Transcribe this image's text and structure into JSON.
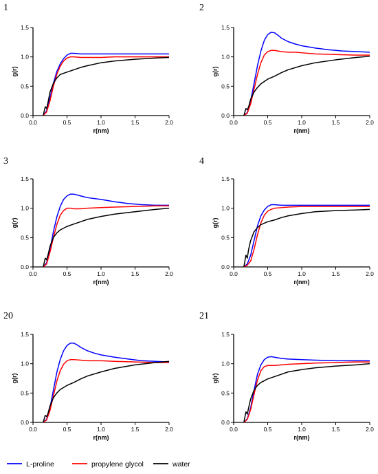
{
  "chart_data": {
    "type": "line",
    "xlabel": "r(nm)",
    "ylabel": "g(r)",
    "xlim": [
      0.0,
      2.0
    ],
    "ylim": [
      0.0,
      1.5
    ],
    "xticks": [
      "0.0",
      "0.5",
      "1.0",
      "1.5",
      "2.0"
    ],
    "yticks": [
      "0.0",
      "0.5",
      "1.0",
      "1.5"
    ],
    "legend": {
      "position": "bottom",
      "entries": [
        {
          "name": "L-proline",
          "color": "#0000ff"
        },
        {
          "name": "propylene glycol",
          "color": "#ff0000"
        },
        {
          "name": "water",
          "color": "#000000"
        }
      ]
    },
    "panels": [
      {
        "label": "1",
        "series": [
          {
            "name": "L-proline",
            "color": "#0000ff",
            "x": [
              0.15,
              0.2,
              0.25,
              0.3,
              0.35,
              0.4,
              0.45,
              0.5,
              0.55,
              0.6,
              0.7,
              0.8,
              1.0,
              1.2,
              1.5,
              1.8,
              2.0
            ],
            "y": [
              0.0,
              0.08,
              0.3,
              0.55,
              0.75,
              0.88,
              0.97,
              1.03,
              1.06,
              1.06,
              1.05,
              1.05,
              1.05,
              1.05,
              1.05,
              1.05,
              1.05
            ]
          },
          {
            "name": "propylene glycol",
            "color": "#ff0000",
            "x": [
              0.15,
              0.2,
              0.25,
              0.3,
              0.35,
              0.4,
              0.45,
              0.5,
              0.55,
              0.6,
              0.7,
              0.8,
              1.0,
              1.2,
              1.5,
              1.8,
              2.0
            ],
            "y": [
              0.0,
              0.06,
              0.25,
              0.5,
              0.7,
              0.84,
              0.93,
              0.98,
              1.0,
              1.0,
              0.99,
              0.99,
              0.99,
              1.0,
              1.0,
              1.0,
              1.0
            ]
          },
          {
            "name": "water",
            "color": "#000000",
            "x": [
              0.15,
              0.18,
              0.2,
              0.22,
              0.25,
              0.3,
              0.35,
              0.4,
              0.5,
              0.6,
              0.7,
              0.8,
              1.0,
              1.2,
              1.5,
              1.8,
              2.0
            ],
            "y": [
              0.0,
              0.15,
              0.12,
              0.22,
              0.4,
              0.55,
              0.64,
              0.7,
              0.74,
              0.78,
              0.82,
              0.85,
              0.9,
              0.93,
              0.96,
              0.98,
              0.99
            ]
          }
        ]
      },
      {
        "label": "2",
        "series": [
          {
            "name": "L-proline",
            "color": "#0000ff",
            "x": [
              0.15,
              0.2,
              0.25,
              0.3,
              0.35,
              0.4,
              0.45,
              0.5,
              0.55,
              0.6,
              0.65,
              0.7,
              0.8,
              0.9,
              1.0,
              1.2,
              1.4,
              1.6,
              1.8,
              2.0
            ],
            "y": [
              0.0,
              0.05,
              0.25,
              0.55,
              0.85,
              1.1,
              1.28,
              1.38,
              1.42,
              1.41,
              1.37,
              1.32,
              1.26,
              1.22,
              1.19,
              1.15,
              1.12,
              1.1,
              1.09,
              1.08
            ]
          },
          {
            "name": "propylene glycol",
            "color": "#ff0000",
            "x": [
              0.15,
              0.2,
              0.25,
              0.3,
              0.35,
              0.4,
              0.45,
              0.5,
              0.55,
              0.6,
              0.7,
              0.8,
              0.9,
              1.0,
              1.2,
              1.5,
              1.8,
              2.0
            ],
            "y": [
              0.0,
              0.04,
              0.2,
              0.45,
              0.7,
              0.9,
              1.03,
              1.09,
              1.11,
              1.11,
              1.09,
              1.08,
              1.08,
              1.07,
              1.05,
              1.04,
              1.03,
              1.03
            ]
          },
          {
            "name": "water",
            "color": "#000000",
            "x": [
              0.15,
              0.18,
              0.2,
              0.22,
              0.25,
              0.3,
              0.35,
              0.4,
              0.5,
              0.6,
              0.7,
              0.8,
              1.0,
              1.2,
              1.5,
              1.8,
              2.0
            ],
            "y": [
              0.0,
              0.12,
              0.1,
              0.15,
              0.28,
              0.4,
              0.48,
              0.54,
              0.62,
              0.67,
              0.73,
              0.78,
              0.85,
              0.9,
              0.95,
              0.99,
              1.01
            ]
          }
        ]
      },
      {
        "label": "3",
        "series": [
          {
            "name": "L-proline",
            "color": "#0000ff",
            "x": [
              0.15,
              0.2,
              0.25,
              0.3,
              0.35,
              0.4,
              0.45,
              0.5,
              0.55,
              0.6,
              0.7,
              0.8,
              1.0,
              1.2,
              1.4,
              1.6,
              1.8,
              2.0
            ],
            "y": [
              0.0,
              0.07,
              0.3,
              0.6,
              0.85,
              1.03,
              1.15,
              1.21,
              1.24,
              1.24,
              1.21,
              1.18,
              1.15,
              1.11,
              1.08,
              1.06,
              1.05,
              1.05
            ]
          },
          {
            "name": "propylene glycol",
            "color": "#ff0000",
            "x": [
              0.15,
              0.2,
              0.25,
              0.3,
              0.35,
              0.4,
              0.45,
              0.5,
              0.55,
              0.6,
              0.7,
              0.8,
              1.0,
              1.2,
              1.5,
              1.8,
              2.0
            ],
            "y": [
              0.0,
              0.05,
              0.25,
              0.5,
              0.72,
              0.88,
              0.96,
              1.0,
              1.0,
              0.99,
              0.99,
              1.0,
              1.01,
              1.02,
              1.03,
              1.04,
              1.04
            ]
          },
          {
            "name": "water",
            "color": "#000000",
            "x": [
              0.15,
              0.18,
              0.2,
              0.22,
              0.25,
              0.3,
              0.35,
              0.4,
              0.5,
              0.6,
              0.7,
              0.8,
              1.0,
              1.2,
              1.5,
              1.8,
              2.0
            ],
            "y": [
              0.0,
              0.15,
              0.12,
              0.2,
              0.35,
              0.5,
              0.58,
              0.63,
              0.69,
              0.73,
              0.77,
              0.81,
              0.86,
              0.9,
              0.94,
              0.98,
              1.0
            ]
          }
        ]
      },
      {
        "label": "4",
        "series": [
          {
            "name": "L-proline",
            "color": "#0000ff",
            "x": [
              0.15,
              0.2,
              0.25,
              0.3,
              0.35,
              0.4,
              0.45,
              0.5,
              0.55,
              0.6,
              0.7,
              0.8,
              1.0,
              1.2,
              1.5,
              1.8,
              2.0
            ],
            "y": [
              0.0,
              0.05,
              0.2,
              0.45,
              0.7,
              0.87,
              0.97,
              1.03,
              1.06,
              1.06,
              1.05,
              1.05,
              1.05,
              1.05,
              1.05,
              1.05,
              1.05
            ]
          },
          {
            "name": "propylene glycol",
            "color": "#ff0000",
            "x": [
              0.15,
              0.2,
              0.25,
              0.3,
              0.35,
              0.4,
              0.45,
              0.5,
              0.55,
              0.6,
              0.7,
              0.8,
              1.0,
              1.2,
              1.5,
              1.8,
              2.0
            ],
            "y": [
              0.0,
              0.03,
              0.1,
              0.3,
              0.55,
              0.75,
              0.88,
              0.95,
              0.98,
              1.0,
              1.01,
              1.02,
              1.03,
              1.03,
              1.03,
              1.03,
              1.03
            ]
          },
          {
            "name": "water",
            "color": "#000000",
            "x": [
              0.15,
              0.18,
              0.2,
              0.22,
              0.25,
              0.3,
              0.35,
              0.4,
              0.5,
              0.6,
              0.7,
              0.8,
              1.0,
              1.2,
              1.5,
              1.8,
              2.0
            ],
            "y": [
              0.0,
              0.2,
              0.15,
              0.3,
              0.45,
              0.6,
              0.67,
              0.72,
              0.77,
              0.8,
              0.84,
              0.87,
              0.91,
              0.94,
              0.96,
              0.97,
              0.98
            ]
          }
        ]
      },
      {
        "label": "20",
        "series": [
          {
            "name": "L-proline",
            "color": "#0000ff",
            "x": [
              0.15,
              0.2,
              0.25,
              0.3,
              0.35,
              0.4,
              0.45,
              0.5,
              0.55,
              0.6,
              0.65,
              0.7,
              0.8,
              0.9,
              1.0,
              1.2,
              1.4,
              1.6,
              1.8,
              2.0
            ],
            "y": [
              0.0,
              0.05,
              0.25,
              0.55,
              0.85,
              1.07,
              1.22,
              1.31,
              1.35,
              1.35,
              1.32,
              1.28,
              1.22,
              1.18,
              1.15,
              1.11,
              1.08,
              1.05,
              1.04,
              1.03
            ]
          },
          {
            "name": "propylene glycol",
            "color": "#ff0000",
            "x": [
              0.15,
              0.2,
              0.25,
              0.3,
              0.35,
              0.4,
              0.45,
              0.5,
              0.55,
              0.6,
              0.7,
              0.8,
              1.0,
              1.2,
              1.5,
              1.8,
              2.0
            ],
            "y": [
              0.0,
              0.04,
              0.2,
              0.45,
              0.7,
              0.88,
              0.99,
              1.05,
              1.07,
              1.07,
              1.06,
              1.05,
              1.05,
              1.04,
              1.03,
              1.02,
              1.02
            ]
          },
          {
            "name": "water",
            "color": "#000000",
            "x": [
              0.15,
              0.18,
              0.2,
              0.22,
              0.25,
              0.3,
              0.35,
              0.4,
              0.5,
              0.6,
              0.7,
              0.8,
              1.0,
              1.2,
              1.5,
              1.8,
              2.0
            ],
            "y": [
              0.0,
              0.12,
              0.1,
              0.15,
              0.28,
              0.42,
              0.5,
              0.56,
              0.63,
              0.68,
              0.74,
              0.79,
              0.86,
              0.92,
              0.98,
              1.02,
              1.04
            ]
          }
        ]
      },
      {
        "label": "21",
        "series": [
          {
            "name": "L-proline",
            "color": "#0000ff",
            "x": [
              0.15,
              0.2,
              0.25,
              0.3,
              0.35,
              0.4,
              0.45,
              0.5,
              0.55,
              0.6,
              0.7,
              0.8,
              1.0,
              1.2,
              1.5,
              1.8,
              2.0
            ],
            "y": [
              0.0,
              0.06,
              0.25,
              0.55,
              0.82,
              0.98,
              1.07,
              1.11,
              1.12,
              1.11,
              1.09,
              1.08,
              1.07,
              1.06,
              1.05,
              1.05,
              1.05
            ]
          },
          {
            "name": "propylene glycol",
            "color": "#ff0000",
            "x": [
              0.15,
              0.2,
              0.25,
              0.3,
              0.35,
              0.4,
              0.45,
              0.5,
              0.55,
              0.6,
              0.7,
              0.8,
              1.0,
              1.2,
              1.5,
              1.8,
              2.0
            ],
            "y": [
              0.0,
              0.05,
              0.22,
              0.48,
              0.72,
              0.88,
              0.95,
              0.97,
              0.97,
              0.97,
              0.98,
              0.99,
              1.0,
              1.01,
              1.02,
              1.03,
              1.03
            ]
          },
          {
            "name": "water",
            "color": "#000000",
            "x": [
              0.15,
              0.18,
              0.2,
              0.22,
              0.25,
              0.3,
              0.35,
              0.4,
              0.5,
              0.6,
              0.7,
              0.8,
              1.0,
              1.2,
              1.5,
              1.8,
              2.0
            ],
            "y": [
              0.0,
              0.18,
              0.14,
              0.25,
              0.4,
              0.55,
              0.63,
              0.68,
              0.74,
              0.78,
              0.82,
              0.86,
              0.9,
              0.93,
              0.96,
              0.98,
              1.0
            ]
          }
        ]
      }
    ]
  }
}
